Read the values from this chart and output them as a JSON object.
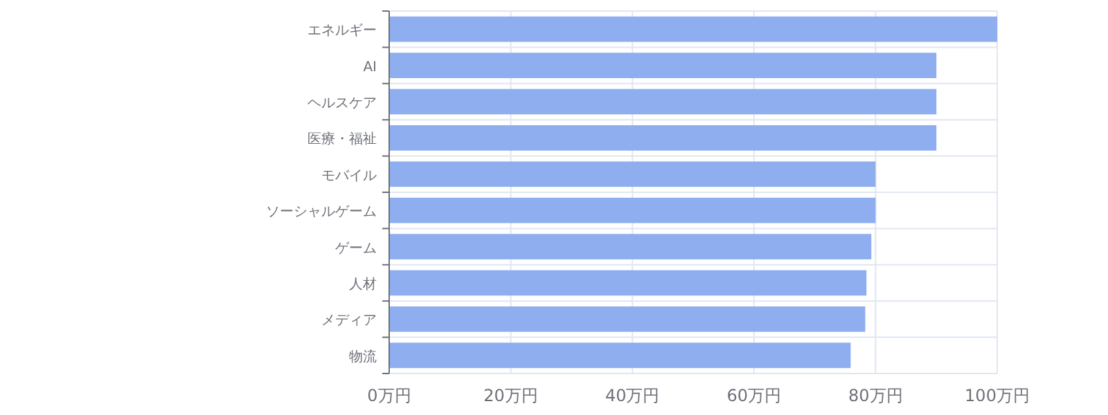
{
  "chart_data": {
    "type": "bar",
    "orientation": "horizontal",
    "categories": [
      "エネルギー",
      "AI",
      "ヘルスケア",
      "医療・福祉",
      "モバイル",
      "ソーシャルゲーム",
      "ゲーム",
      "人材",
      "メディア",
      "物流"
    ],
    "values": [
      100,
      90,
      90,
      90,
      80,
      80,
      79.3,
      78.5,
      78.3,
      75.9
    ],
    "color": "#8eaef0",
    "xlim": [
      0,
      100
    ],
    "xticks": [
      {
        "value": 0,
        "label": "0万円"
      },
      {
        "value": 20,
        "label": "20万円"
      },
      {
        "value": 40,
        "label": "40万円"
      },
      {
        "value": 60,
        "label": "60万円"
      },
      {
        "value": 80,
        "label": "80万円"
      },
      {
        "value": 100,
        "label": "100万円"
      }
    ],
    "grid": true
  }
}
